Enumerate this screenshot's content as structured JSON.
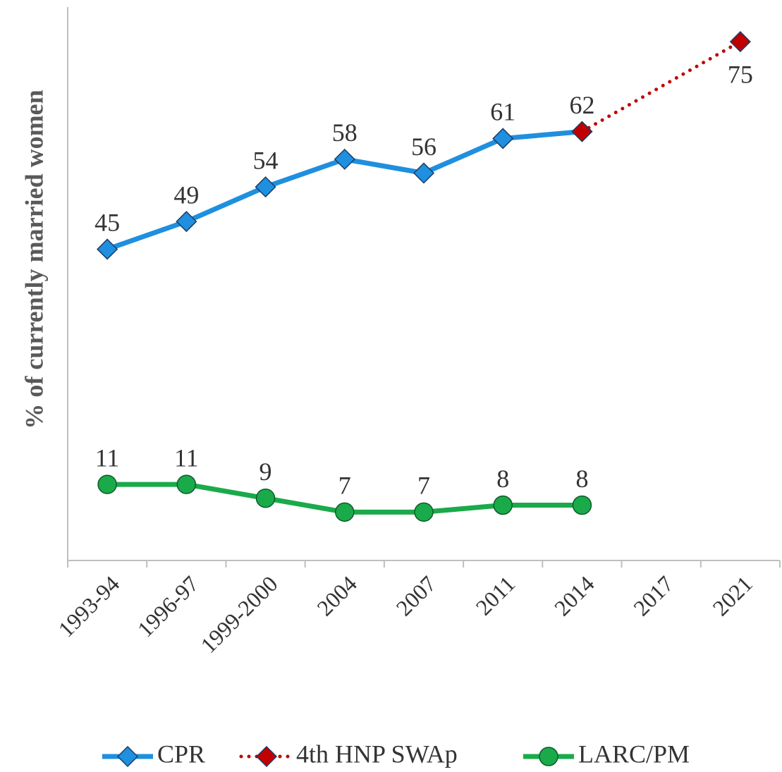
{
  "chart_data": {
    "type": "line",
    "y_axis_label": "% of currently married women",
    "categories": [
      "1993-94",
      "1996-97",
      "1999-2000",
      "2004",
      "2007",
      "2011",
      "2014",
      "2017",
      "2021"
    ],
    "ylim": [
      0,
      80
    ],
    "series": [
      {
        "name": "CPR",
        "color": "#1f8fdf",
        "marker": "diamond",
        "line_style": "solid",
        "values": [
          45,
          49,
          54,
          58,
          56,
          61,
          62,
          null,
          null
        ]
      },
      {
        "name": "4th HNP SWAp",
        "color": "#c00000",
        "marker": "diamond",
        "line_style": "dotted",
        "connect_gaps": true,
        "values": [
          null,
          null,
          null,
          null,
          null,
          null,
          62,
          null,
          75
        ]
      },
      {
        "name": "LARC/PM",
        "color": "#1aaa4a",
        "marker": "circle",
        "line_style": "solid",
        "values": [
          11,
          11,
          9,
          7,
          7,
          8,
          8,
          null,
          null
        ]
      }
    ]
  }
}
